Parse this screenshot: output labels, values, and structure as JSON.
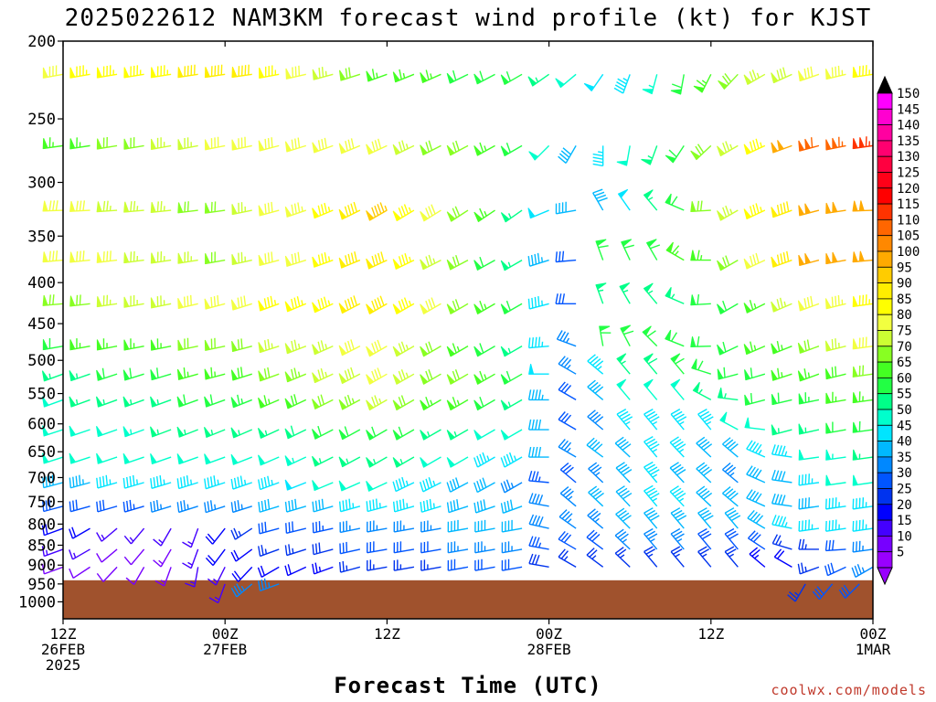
{
  "chart_data": {
    "type": "wind-barb-profile",
    "title": "2025022612 NAM3KM forecast wind profile (kt) for KJST",
    "xlabel": "Forecast Time (UTC)",
    "credit": "coolwx.com/models",
    "y_levels_hpa": [
      200,
      250,
      300,
      350,
      400,
      450,
      500,
      550,
      600,
      650,
      700,
      750,
      800,
      850,
      900,
      950,
      1000
    ],
    "ylim": [
      1050,
      200
    ],
    "y_scale": "log",
    "x_range_hours": [
      0,
      60
    ],
    "x_ticks": [
      {
        "hour": 0,
        "lines": [
          "12Z",
          "26FEB",
          "2025"
        ]
      },
      {
        "hour": 12,
        "lines": [
          "00Z",
          "27FEB"
        ]
      },
      {
        "hour": 24,
        "lines": [
          "12Z"
        ]
      },
      {
        "hour": 36,
        "lines": [
          "00Z",
          "28FEB"
        ]
      },
      {
        "hour": 48,
        "lines": [
          "12Z"
        ]
      },
      {
        "hour": 60,
        "lines": [
          "00Z",
          "1MAR"
        ]
      }
    ],
    "ground_color": "#a0522d",
    "surface_pressure_hpa": 940,
    "colorbar": {
      "labels": [
        150,
        145,
        140,
        135,
        130,
        125,
        120,
        115,
        110,
        105,
        100,
        95,
        90,
        85,
        80,
        75,
        70,
        65,
        60,
        55,
        50,
        45,
        40,
        35,
        30,
        25,
        20,
        15,
        10,
        5
      ],
      "colors": [
        "#ff00ff",
        "#ff00d0",
        "#ff00a0",
        "#ff0070",
        "#ff0040",
        "#ff0018",
        "#ff0000",
        "#ff3300",
        "#ff6600",
        "#ff8800",
        "#ffaa00",
        "#ffcc00",
        "#ffee00",
        "#ffff00",
        "#f2ff40",
        "#ccff33",
        "#88ff22",
        "#44ff22",
        "#22ff44",
        "#00ff88",
        "#00ffcc",
        "#00e5ff",
        "#00b8ff",
        "#0088ff",
        "#0055ff",
        "#0033ee",
        "#0000ff",
        "#4400ff",
        "#7700ff",
        "#9900ff"
      ]
    },
    "barb_time_step_hours": 2,
    "level_keyframes": [
      {
        "p": 220,
        "kf": [
          [
            0,
            260,
            82
          ],
          [
            14,
            262,
            90
          ],
          [
            24,
            250,
            65
          ],
          [
            34,
            240,
            60
          ],
          [
            38,
            230,
            50
          ],
          [
            42,
            200,
            45
          ],
          [
            46,
            190,
            60
          ],
          [
            52,
            240,
            75
          ],
          [
            60,
            262,
            85
          ]
        ]
      },
      {
        "p": 270,
        "kf": [
          [
            0,
            262,
            65
          ],
          [
            14,
            258,
            80
          ],
          [
            24,
            245,
            80
          ],
          [
            34,
            240,
            60
          ],
          [
            38,
            210,
            40
          ],
          [
            40,
            180,
            45
          ],
          [
            44,
            200,
            55
          ],
          [
            50,
            240,
            75
          ],
          [
            56,
            255,
            110
          ],
          [
            60,
            262,
            115
          ]
        ]
      },
      {
        "p": 325,
        "kf": [
          [
            0,
            268,
            80
          ],
          [
            12,
            262,
            70
          ],
          [
            24,
            240,
            95
          ],
          [
            34,
            235,
            55
          ],
          [
            38,
            260,
            40
          ],
          [
            40,
            330,
            40
          ],
          [
            44,
            320,
            55
          ],
          [
            50,
            240,
            75
          ],
          [
            56,
            255,
            100
          ],
          [
            60,
            268,
            100
          ]
        ]
      },
      {
        "p": 375,
        "kf": [
          [
            0,
            265,
            82
          ],
          [
            12,
            260,
            72
          ],
          [
            24,
            245,
            92
          ],
          [
            34,
            240,
            55
          ],
          [
            38,
            265,
            30
          ],
          [
            40,
            340,
            60
          ],
          [
            44,
            330,
            60
          ],
          [
            50,
            240,
            70
          ],
          [
            56,
            255,
            100
          ],
          [
            60,
            265,
            100
          ]
        ]
      },
      {
        "p": 425,
        "kf": [
          [
            0,
            265,
            70
          ],
          [
            12,
            255,
            80
          ],
          [
            24,
            240,
            90
          ],
          [
            34,
            240,
            60
          ],
          [
            38,
            270,
            30
          ],
          [
            40,
            340,
            55
          ],
          [
            44,
            320,
            55
          ],
          [
            50,
            240,
            60
          ],
          [
            56,
            250,
            80
          ],
          [
            60,
            262,
            85
          ]
        ]
      },
      {
        "p": 480,
        "kf": [
          [
            0,
            260,
            62
          ],
          [
            12,
            258,
            70
          ],
          [
            24,
            240,
            80
          ],
          [
            34,
            240,
            55
          ],
          [
            38,
            290,
            35
          ],
          [
            40,
            350,
            60
          ],
          [
            44,
            315,
            60
          ],
          [
            50,
            245,
            60
          ],
          [
            56,
            250,
            70
          ],
          [
            60,
            262,
            78
          ]
        ]
      },
      {
        "p": 520,
        "kf": [
          [
            0,
            250,
            55
          ],
          [
            12,
            255,
            65
          ],
          [
            24,
            240,
            80
          ],
          [
            34,
            240,
            60
          ],
          [
            38,
            300,
            35
          ],
          [
            42,
            320,
            55
          ],
          [
            46,
            320,
            60
          ],
          [
            50,
            255,
            60
          ],
          [
            56,
            250,
            65
          ],
          [
            60,
            262,
            70
          ]
        ]
      },
      {
        "p": 560,
        "kf": [
          [
            0,
            250,
            52
          ],
          [
            12,
            250,
            60
          ],
          [
            24,
            240,
            75
          ],
          [
            34,
            240,
            55
          ],
          [
            38,
            300,
            30
          ],
          [
            42,
            320,
            50
          ],
          [
            46,
            320,
            50
          ],
          [
            52,
            255,
            60
          ],
          [
            60,
            262,
            65
          ]
        ]
      },
      {
        "p": 610,
        "kf": [
          [
            0,
            252,
            50
          ],
          [
            12,
            248,
            55
          ],
          [
            24,
            240,
            60
          ],
          [
            34,
            240,
            50
          ],
          [
            38,
            300,
            30
          ],
          [
            42,
            320,
            45
          ],
          [
            48,
            320,
            45
          ],
          [
            54,
            255,
            55
          ],
          [
            60,
            262,
            60
          ]
        ]
      },
      {
        "p": 660,
        "kf": [
          [
            0,
            252,
            48
          ],
          [
            12,
            250,
            50
          ],
          [
            24,
            240,
            55
          ],
          [
            34,
            240,
            45
          ],
          [
            38,
            300,
            35
          ],
          [
            44,
            320,
            45
          ],
          [
            50,
            310,
            40
          ],
          [
            56,
            262,
            50
          ],
          [
            60,
            262,
            55
          ]
        ]
      },
      {
        "p": 710,
        "kf": [
          [
            0,
            255,
            42
          ],
          [
            12,
            252,
            45
          ],
          [
            24,
            245,
            50
          ],
          [
            34,
            240,
            35
          ],
          [
            38,
            310,
            30
          ],
          [
            44,
            320,
            45
          ],
          [
            50,
            310,
            35
          ],
          [
            56,
            262,
            45
          ],
          [
            60,
            262,
            52
          ]
        ]
      },
      {
        "p": 760,
        "kf": [
          [
            0,
            255,
            30
          ],
          [
            12,
            252,
            35
          ],
          [
            24,
            255,
            45
          ],
          [
            34,
            250,
            40
          ],
          [
            38,
            310,
            35
          ],
          [
            44,
            320,
            45
          ],
          [
            50,
            310,
            40
          ],
          [
            56,
            262,
            42
          ],
          [
            60,
            262,
            45
          ]
        ]
      },
      {
        "p": 810,
        "kf": [
          [
            0,
            250,
            20
          ],
          [
            6,
            220,
            15
          ],
          [
            10,
            200,
            15
          ],
          [
            16,
            255,
            30
          ],
          [
            24,
            260,
            35
          ],
          [
            34,
            260,
            40
          ],
          [
            38,
            305,
            35
          ],
          [
            44,
            320,
            40
          ],
          [
            50,
            320,
            40
          ],
          [
            56,
            262,
            45
          ],
          [
            60,
            262,
            45
          ]
        ]
      },
      {
        "p": 860,
        "kf": [
          [
            0,
            250,
            15
          ],
          [
            6,
            220,
            10
          ],
          [
            10,
            200,
            15
          ],
          [
            16,
            250,
            25
          ],
          [
            24,
            260,
            30
          ],
          [
            34,
            260,
            35
          ],
          [
            38,
            300,
            30
          ],
          [
            44,
            320,
            35
          ],
          [
            50,
            320,
            30
          ],
          [
            56,
            270,
            25
          ],
          [
            60,
            262,
            35
          ]
        ]
      },
      {
        "p": 905,
        "kf": [
          [
            0,
            250,
            10
          ],
          [
            6,
            210,
            10
          ],
          [
            10,
            190,
            15
          ],
          [
            16,
            240,
            20
          ],
          [
            24,
            260,
            25
          ],
          [
            34,
            260,
            30
          ],
          [
            38,
            300,
            25
          ],
          [
            44,
            320,
            25
          ],
          [
            50,
            320,
            25
          ],
          [
            54,
            300,
            20
          ],
          [
            56,
            250,
            25
          ],
          [
            60,
            240,
            35
          ]
        ]
      },
      {
        "p": 950,
        "kf": [
          [
            12,
            200,
            15
          ],
          [
            13,
            210,
            30
          ],
          [
            14,
            230,
            35
          ],
          [
            16,
            250,
            35
          ]
        ]
      },
      {
        "p": 950,
        "kf": [
          [
            55,
            210,
            25
          ],
          [
            57,
            220,
            30
          ],
          [
            59,
            225,
            30
          ],
          [
            60,
            200,
            35
          ]
        ]
      }
    ]
  }
}
